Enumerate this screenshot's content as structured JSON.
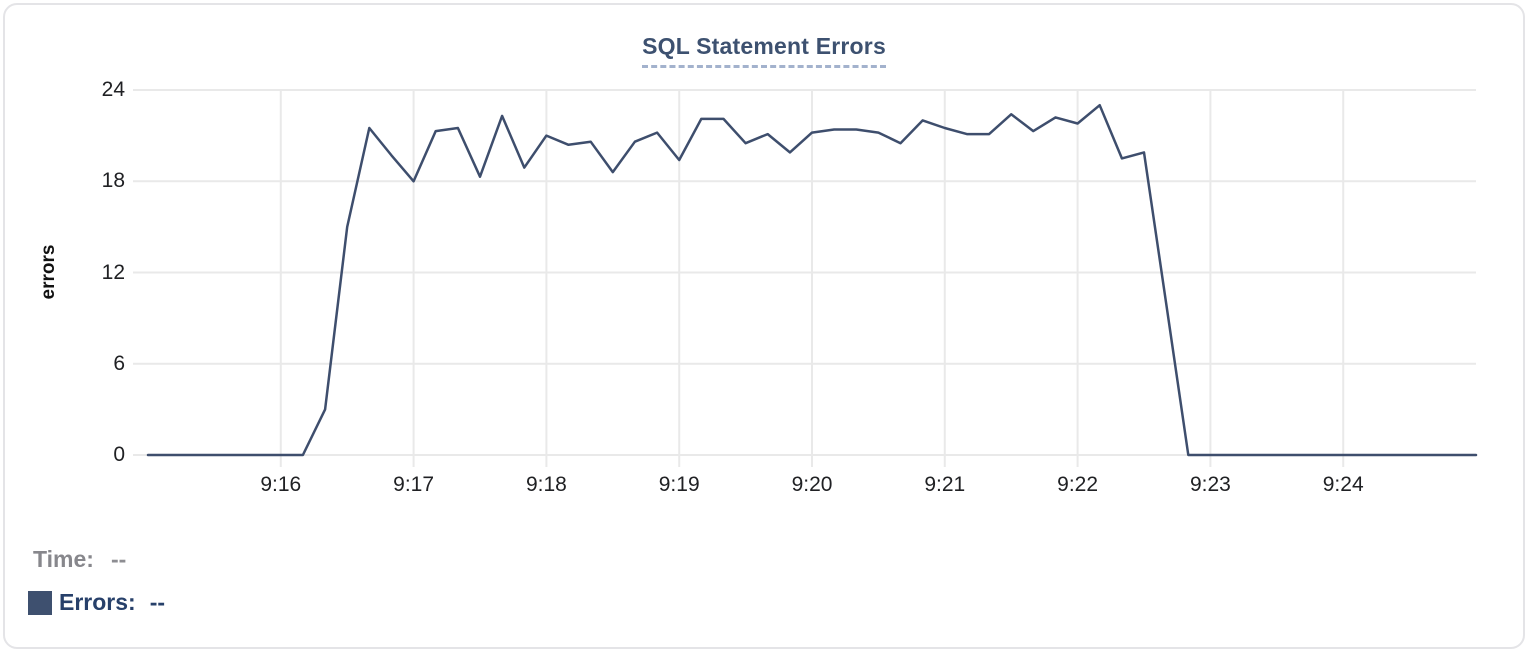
{
  "chart_data": {
    "type": "line",
    "title": "SQL Statement Errors",
    "xlabel": "",
    "ylabel": "errors",
    "ylim": [
      0,
      24
    ],
    "y_ticks": [
      "24",
      "18",
      "12",
      "6",
      "0"
    ],
    "x_ticks": [
      "9:16",
      "9:17",
      "9:18",
      "9:19",
      "9:20",
      "9:21",
      "9:22",
      "9:23",
      "9:24"
    ],
    "x_range": [
      "9:15:00",
      "9:25:00"
    ],
    "interval_seconds": 10,
    "grid": true,
    "legend_position": "bottom-left",
    "series": [
      {
        "name": "Errors",
        "times": [
          "9:15:00",
          "9:15:10",
          "9:15:20",
          "9:15:30",
          "9:15:40",
          "9:15:50",
          "9:16:00",
          "9:16:10",
          "9:16:20",
          "9:16:30",
          "9:16:40",
          "9:16:50",
          "9:17:00",
          "9:17:10",
          "9:17:20",
          "9:17:30",
          "9:17:40",
          "9:17:50",
          "9:18:00",
          "9:18:10",
          "9:18:20",
          "9:18:30",
          "9:18:40",
          "9:18:50",
          "9:19:00",
          "9:19:10",
          "9:19:20",
          "9:19:30",
          "9:19:40",
          "9:19:50",
          "9:20:00",
          "9:20:10",
          "9:20:20",
          "9:20:30",
          "9:20:40",
          "9:20:50",
          "9:21:00",
          "9:21:10",
          "9:21:20",
          "9:21:30",
          "9:21:40",
          "9:21:50",
          "9:22:00",
          "9:22:10",
          "9:22:20",
          "9:22:30",
          "9:22:40",
          "9:22:50",
          "9:23:00",
          "9:23:10",
          "9:23:20",
          "9:23:30",
          "9:23:40",
          "9:23:50",
          "9:24:00",
          "9:24:10",
          "9:24:20",
          "9:24:30",
          "9:24:40",
          "9:24:50",
          "9:25:00"
        ],
        "values": [
          0,
          0,
          0,
          0,
          0,
          0,
          0,
          0,
          3,
          15,
          21.5,
          19.7,
          18,
          21.3,
          21.5,
          18.3,
          22.3,
          18.9,
          21,
          20.4,
          20.6,
          18.6,
          20.6,
          21.2,
          19.4,
          22.1,
          22.1,
          20.5,
          21.1,
          19.9,
          21.2,
          21.4,
          21.4,
          21.2,
          20.5,
          22,
          21.5,
          21.1,
          21.1,
          22.4,
          21.3,
          22.2,
          21.8,
          23,
          19.5,
          19.9,
          10,
          0,
          0,
          0,
          0,
          0,
          0,
          0,
          0,
          0,
          0,
          0,
          0,
          0,
          0
        ]
      }
    ]
  },
  "tooltip": {
    "time_label": "Time:",
    "time_value": "--",
    "errors_label": "Errors:",
    "errors_value": "--"
  },
  "colors": {
    "line": "#3e4e6d",
    "swatch": "#3e506f",
    "title": "#3d5170",
    "title_underline": "#a3b2cd",
    "grid": "#e9e9e9",
    "axis_text": "#202124",
    "time_text": "#87878c",
    "errors_text": "#27406a",
    "card_border": "#e4e4e7"
  }
}
